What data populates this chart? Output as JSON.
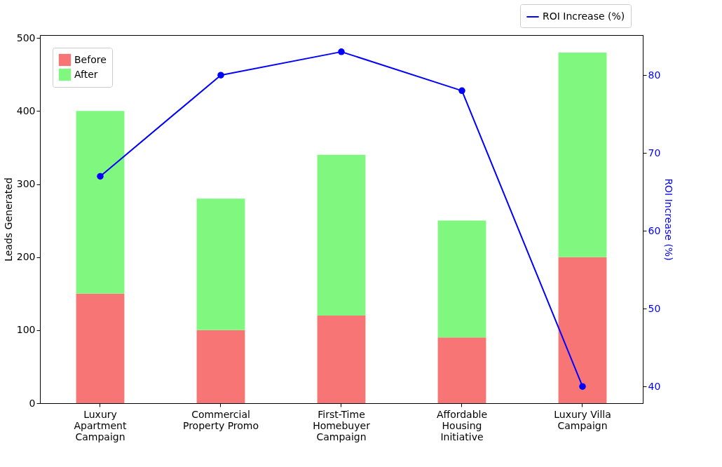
{
  "chart_data": {
    "type": "bar",
    "stacked": true,
    "categories": [
      "Luxury Apartment Campaign",
      "Commercial Property Promo",
      "First-Time Homebuyer Campaign",
      "Affordable Housing Initiative",
      "Luxury Villa Campaign"
    ],
    "ylabel": "Leads Generated",
    "y2label": "ROI Increase (%)",
    "ylim": [
      0,
      504
    ],
    "yticks": [
      0,
      100,
      200,
      300,
      400,
      500
    ],
    "y2lim": [
      37.85,
      85.15
    ],
    "y2ticks": [
      40,
      50,
      60,
      70,
      80
    ],
    "series": [
      {
        "name": "Before",
        "color": "#f87575",
        "values": [
          150,
          100,
          120,
          90,
          200
        ]
      },
      {
        "name": "After",
        "color": "#80f880",
        "values": [
          250,
          180,
          220,
          160,
          280
        ]
      },
      {
        "name": "ROI Increase (%)",
        "type": "line",
        "axis": "y2",
        "color": "#0000ff",
        "marker": "circle",
        "values": [
          67,
          80,
          83,
          78,
          40
        ]
      }
    ],
    "legend": "top",
    "grid": false
  }
}
